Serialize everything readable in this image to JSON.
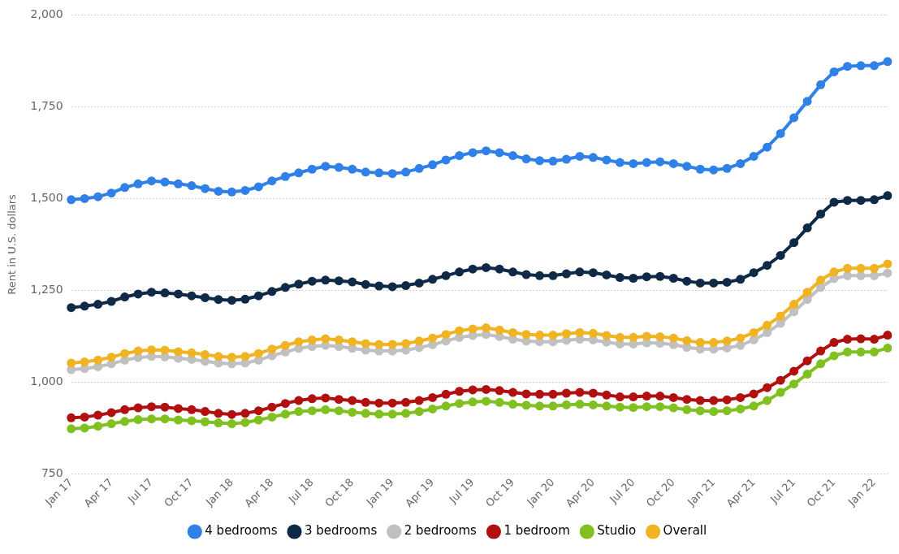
{
  "chart_data": {
    "type": "line",
    "ylabel": "Rent in U.S. dollars",
    "categories": [
      "Jan 17",
      null,
      null,
      "Apr 17",
      null,
      null,
      "Jul 17",
      null,
      null,
      "Oct 17",
      null,
      null,
      "Jan 18",
      null,
      null,
      "Apr 18",
      null,
      null,
      "Jul 18",
      null,
      null,
      "Oct 18",
      null,
      null,
      "Jan 19",
      null,
      null,
      "Apr 19",
      null,
      null,
      "Jul 19",
      null,
      null,
      "Oct 19",
      null,
      null,
      "Jan 20",
      null,
      null,
      "Apr 20",
      null,
      null,
      "Jul 20",
      null,
      null,
      "Oct 20",
      null,
      null,
      "Jan 21",
      null,
      null,
      "Apr 21",
      null,
      null,
      "Jul 21",
      null,
      null,
      "Oct 21",
      null,
      null,
      "Jan 22",
      null
    ],
    "series": [
      {
        "name": "4 bedrooms",
        "color": "#2f80e7",
        "values": [
          1497,
          1500,
          1505,
          1515,
          1530,
          1540,
          1548,
          1545,
          1540,
          1535,
          1527,
          1520,
          1518,
          1522,
          1532,
          1548,
          1560,
          1570,
          1580,
          1588,
          1585,
          1580,
          1572,
          1570,
          1568,
          1572,
          1582,
          1592,
          1605,
          1617,
          1625,
          1630,
          1625,
          1617,
          1608,
          1603,
          1602,
          1607,
          1615,
          1612,
          1605,
          1598,
          1595,
          1598,
          1600,
          1595,
          1588,
          1580,
          1578,
          1582,
          1595,
          1615,
          1640,
          1677,
          1720,
          1765,
          1810,
          1845,
          1860,
          1862,
          1862,
          1873
        ]
      },
      {
        "name": "3 bedrooms",
        "color": "#0e2a47",
        "values": [
          1203,
          1207,
          1212,
          1220,
          1232,
          1240,
          1245,
          1243,
          1240,
          1235,
          1230,
          1225,
          1223,
          1226,
          1235,
          1247,
          1258,
          1267,
          1275,
          1278,
          1276,
          1273,
          1266,
          1262,
          1260,
          1263,
          1270,
          1280,
          1290,
          1300,
          1308,
          1312,
          1308,
          1300,
          1293,
          1290,
          1290,
          1295,
          1300,
          1298,
          1292,
          1285,
          1283,
          1287,
          1288,
          1283,
          1275,
          1270,
          1270,
          1272,
          1280,
          1298,
          1318,
          1345,
          1380,
          1420,
          1458,
          1490,
          1495,
          1495,
          1497,
          1508
        ]
      },
      {
        "name": "2 bedrooms",
        "color": "#c0c0c0",
        "values": [
          1034,
          1037,
          1042,
          1050,
          1060,
          1067,
          1070,
          1069,
          1065,
          1062,
          1057,
          1052,
          1050,
          1052,
          1060,
          1072,
          1082,
          1092,
          1097,
          1100,
          1097,
          1092,
          1087,
          1085,
          1085,
          1087,
          1094,
          1102,
          1112,
          1122,
          1127,
          1130,
          1124,
          1117,
          1112,
          1110,
          1110,
          1114,
          1117,
          1115,
          1109,
          1104,
          1104,
          1107,
          1106,
          1102,
          1095,
          1090,
          1090,
          1093,
          1100,
          1115,
          1135,
          1160,
          1192,
          1225,
          1258,
          1282,
          1290,
          1290,
          1290,
          1297
        ]
      },
      {
        "name": "1 bedroom",
        "color": "#b01010",
        "values": [
          903,
          905,
          910,
          917,
          925,
          930,
          933,
          932,
          928,
          925,
          920,
          915,
          912,
          915,
          922,
          932,
          942,
          950,
          955,
          957,
          953,
          950,
          945,
          943,
          943,
          945,
          950,
          958,
          967,
          975,
          979,
          980,
          977,
          972,
          968,
          967,
          967,
          970,
          972,
          970,
          965,
          960,
          960,
          962,
          962,
          958,
          953,
          950,
          950,
          952,
          958,
          968,
          985,
          1005,
          1030,
          1058,
          1085,
          1108,
          1117,
          1118,
          1117,
          1128
        ]
      },
      {
        "name": "Studio",
        "color": "#80c020",
        "values": [
          873,
          875,
          880,
          887,
          893,
          898,
          900,
          900,
          897,
          895,
          892,
          889,
          887,
          890,
          897,
          905,
          913,
          920,
          922,
          925,
          922,
          918,
          915,
          913,
          913,
          915,
          920,
          927,
          935,
          942,
          946,
          948,
          945,
          940,
          937,
          935,
          935,
          938,
          940,
          938,
          935,
          932,
          931,
          933,
          933,
          930,
          925,
          922,
          920,
          922,
          927,
          935,
          950,
          972,
          995,
          1022,
          1050,
          1072,
          1082,
          1082,
          1082,
          1093
        ]
      },
      {
        "name": "Overall",
        "color": "#f0b323",
        "values": [
          1052,
          1055,
          1060,
          1068,
          1078,
          1085,
          1088,
          1087,
          1083,
          1080,
          1075,
          1070,
          1068,
          1070,
          1078,
          1090,
          1100,
          1110,
          1115,
          1118,
          1115,
          1110,
          1105,
          1103,
          1103,
          1105,
          1112,
          1120,
          1130,
          1140,
          1145,
          1148,
          1142,
          1135,
          1130,
          1128,
          1128,
          1132,
          1135,
          1133,
          1127,
          1122,
          1122,
          1125,
          1124,
          1120,
          1113,
          1108,
          1108,
          1112,
          1120,
          1135,
          1155,
          1180,
          1212,
          1245,
          1278,
          1300,
          1310,
          1310,
          1310,
          1322
        ]
      }
    ],
    "ylim": [
      750,
      2000
    ],
    "yticks": [
      750,
      {
        "value": 1000,
        "label": "1,000"
      },
      {
        "value": 1250,
        "label": "1,250"
      },
      {
        "value": 1500,
        "label": "1,500"
      },
      {
        "value": 1750,
        "label": "1,750"
      },
      {
        "value": 2000,
        "label": "2,000"
      }
    ],
    "grid": "y",
    "legend": "bottom",
    "marker": "circle",
    "line_style": "solid"
  }
}
